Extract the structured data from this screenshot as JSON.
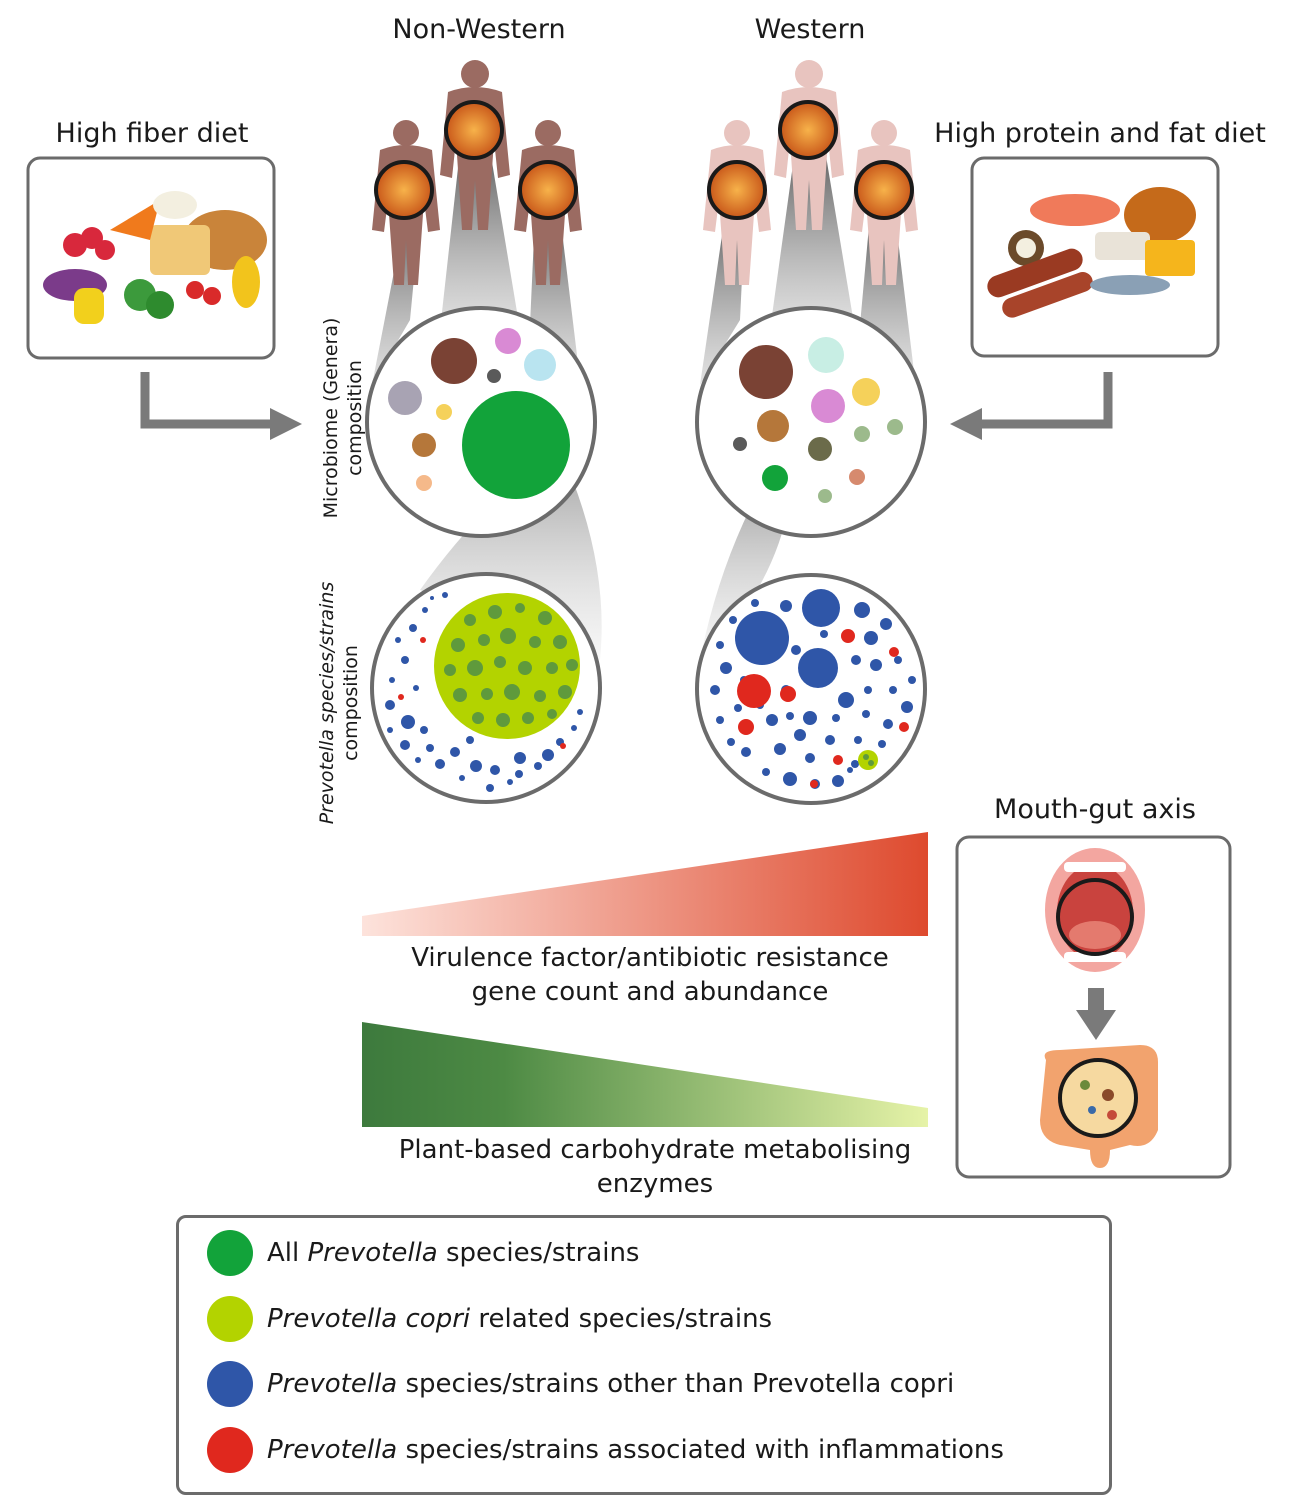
{
  "headers": {
    "non_western": "Non-Western",
    "western": "Western",
    "high_fiber": "High fiber diet",
    "high_protein": "High protein and fat diet",
    "mouth_gut": "Mouth-gut axis"
  },
  "side_labels": {
    "microbiome_line1": "Microbiome (Genera)",
    "microbiome_line2": "composition",
    "prevotella_line1": "Prevotella species/strains",
    "prevotella_line2": "composition"
  },
  "gradients": {
    "virulence_line1": "Virulence factor/antibiotic resistance",
    "virulence_line2": "gene count and abundance",
    "plant_line1": "Plant-based carbohydrate metabolising",
    "plant_line2": "enzymes",
    "red_start": "#fde3dc",
    "red_end": "#de4a2e",
    "green_start": "#3d7a3d",
    "green_end": "#e6f3a8"
  },
  "legend": [
    {
      "italic": "All ",
      "italic_part": "Prevotella",
      "rest": " species/strains",
      "color": "#12a33a"
    },
    {
      "italic_part": "Prevotella copri",
      "rest": " related species/strains",
      "color": "#b3d300"
    },
    {
      "italic_part": "Prevotella",
      "rest": " species/strains other than Prevotella copri",
      "color": "#2f56a8"
    },
    {
      "italic_part": "Prevotella",
      "rest": " species/strains associated with inflammations",
      "color": "#e0281e"
    }
  ],
  "colors": {
    "prevotella_all": "#12a33a",
    "prevotella_copri": "#b3d300",
    "prevotella_other": "#2f56a8",
    "prevotella_inflammation": "#e0281e",
    "box_border": "#6b6b6b",
    "arrow": "#7a7a7a"
  }
}
